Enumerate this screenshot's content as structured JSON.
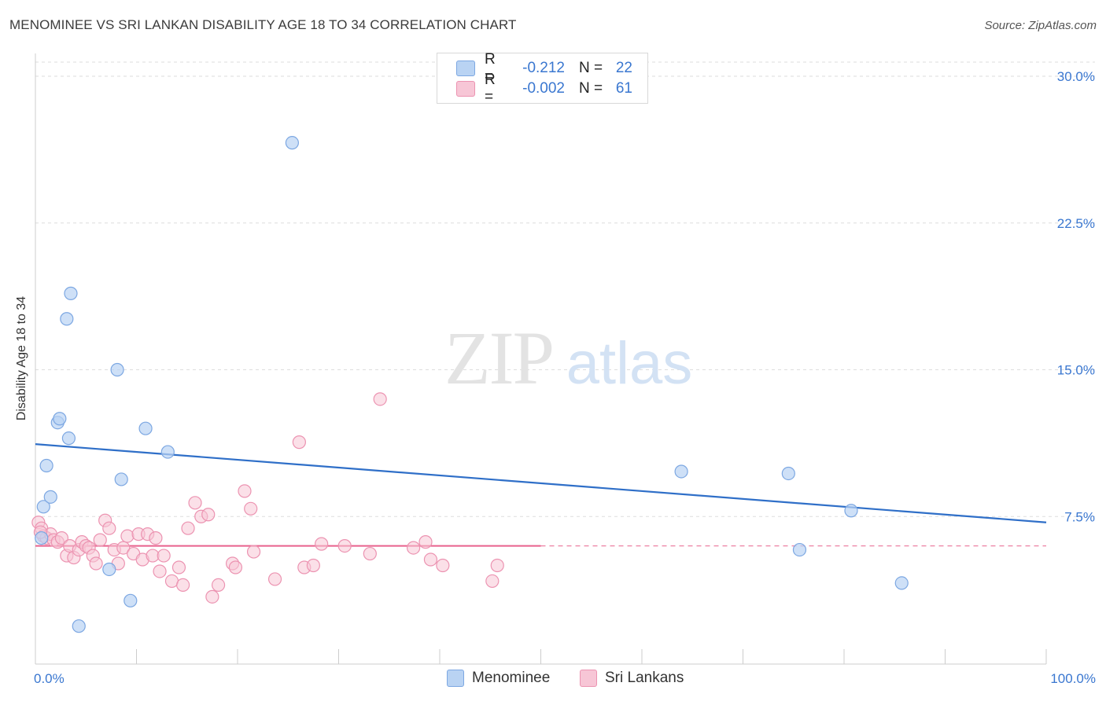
{
  "title": "MENOMINEE VS SRI LANKAN DISABILITY AGE 18 TO 34 CORRELATION CHART",
  "source": "Source: ZipAtlas.com",
  "watermark": {
    "zip": "ZIP",
    "atlas": "atlas"
  },
  "legend_top": [
    {
      "r_label": "R =",
      "r_value": "-0.212",
      "n_label": "N =",
      "n_value": "22"
    },
    {
      "r_label": "R =",
      "r_value": "-0.002",
      "n_label": "N =",
      "n_value": "61"
    }
  ],
  "legend_bottom": [
    "Menominee",
    "Sri Lankans"
  ],
  "colors": {
    "blue_fill": "#b9d3f3",
    "blue_stroke": "#7ca7e2",
    "blue_line": "#2f6fc8",
    "pink_fill": "#f7c6d6",
    "pink_stroke": "#ec93b1",
    "pink_line": "#e8628d",
    "tick_text": "#3a77d0",
    "grid": "#dddddd"
  },
  "chart_data": {
    "type": "scatter",
    "title": "MENOMINEE VS SRI LANKAN DISABILITY AGE 18 TO 34 CORRELATION CHART",
    "xlabel": "",
    "ylabel": "Disability Age 18 to 34",
    "xlim": [
      0,
      100
    ],
    "ylim": [
      0,
      30
    ],
    "x_tick_labels": [
      "0.0%",
      "100.0%"
    ],
    "y_ticks": [
      7.5,
      15.0,
      22.5,
      30.0
    ],
    "y_tick_labels": [
      "7.5%",
      "15.0%",
      "22.5%",
      "30.0%"
    ],
    "series": [
      {
        "name": "Menominee",
        "r": -0.212,
        "n": 22,
        "points": [
          [
            0.6,
            6.4
          ],
          [
            0.8,
            8.0
          ],
          [
            1.1,
            10.1
          ],
          [
            1.5,
            8.5
          ],
          [
            2.2,
            12.3
          ],
          [
            2.4,
            12.5
          ],
          [
            3.1,
            17.6
          ],
          [
            3.3,
            11.5
          ],
          [
            3.5,
            18.9
          ],
          [
            4.3,
            1.9
          ],
          [
            7.3,
            4.8
          ],
          [
            8.1,
            15.0
          ],
          [
            8.5,
            9.4
          ],
          [
            9.4,
            3.2
          ],
          [
            10.9,
            12.0
          ],
          [
            13.1,
            10.8
          ],
          [
            25.4,
            26.6
          ],
          [
            63.9,
            9.8
          ],
          [
            74.5,
            9.7
          ],
          [
            75.6,
            5.8
          ],
          [
            80.7,
            7.8
          ],
          [
            85.7,
            4.1
          ]
        ],
        "trend": {
          "x": [
            0,
            100
          ],
          "y": [
            11.2,
            7.2
          ]
        }
      },
      {
        "name": "Sri Lankans",
        "r": -0.002,
        "n": 61,
        "points": [
          [
            0.3,
            7.2
          ],
          [
            0.6,
            6.9
          ],
          [
            0.8,
            6.5
          ],
          [
            1.1,
            6.4
          ],
          [
            1.5,
            6.6
          ],
          [
            1.8,
            6.3
          ],
          [
            2.2,
            6.2
          ],
          [
            2.6,
            6.4
          ],
          [
            3.1,
            5.5
          ],
          [
            3.4,
            6.0
          ],
          [
            3.8,
            5.4
          ],
          [
            4.3,
            5.8
          ],
          [
            4.6,
            6.2
          ],
          [
            5.0,
            6.0
          ],
          [
            5.3,
            5.9
          ],
          [
            5.7,
            5.5
          ],
          [
            6.0,
            5.1
          ],
          [
            6.4,
            6.3
          ],
          [
            6.9,
            7.3
          ],
          [
            7.3,
            6.9
          ],
          [
            7.8,
            5.8
          ],
          [
            8.2,
            5.1
          ],
          [
            8.7,
            5.9
          ],
          [
            9.1,
            6.5
          ],
          [
            9.7,
            5.6
          ],
          [
            10.2,
            6.6
          ],
          [
            10.6,
            5.3
          ],
          [
            11.1,
            6.6
          ],
          [
            11.6,
            5.5
          ],
          [
            11.9,
            6.4
          ],
          [
            12.3,
            4.7
          ],
          [
            12.7,
            5.5
          ],
          [
            13.5,
            4.2
          ],
          [
            14.2,
            4.9
          ],
          [
            14.6,
            4.0
          ],
          [
            15.1,
            6.9
          ],
          [
            15.8,
            8.2
          ],
          [
            16.4,
            7.5
          ],
          [
            17.1,
            7.6
          ],
          [
            17.5,
            3.4
          ],
          [
            18.1,
            4.0
          ],
          [
            19.5,
            5.1
          ],
          [
            19.8,
            4.9
          ],
          [
            20.7,
            8.8
          ],
          [
            21.3,
            7.9
          ],
          [
            21.6,
            5.7
          ],
          [
            23.7,
            4.3
          ],
          [
            26.1,
            11.3
          ],
          [
            26.6,
            4.9
          ],
          [
            27.5,
            5.0
          ],
          [
            28.3,
            6.1
          ],
          [
            30.6,
            6.0
          ],
          [
            33.1,
            5.6
          ],
          [
            34.1,
            13.5
          ],
          [
            37.4,
            5.9
          ],
          [
            38.6,
            6.2
          ],
          [
            39.1,
            5.3
          ],
          [
            40.3,
            5.0
          ],
          [
            45.2,
            4.2
          ],
          [
            45.7,
            5.0
          ],
          [
            0.5,
            6.7
          ]
        ],
        "trend": {
          "x": [
            0,
            100
          ],
          "y": [
            6.0,
            6.0
          ],
          "solid_until_x": 50
        }
      }
    ]
  }
}
